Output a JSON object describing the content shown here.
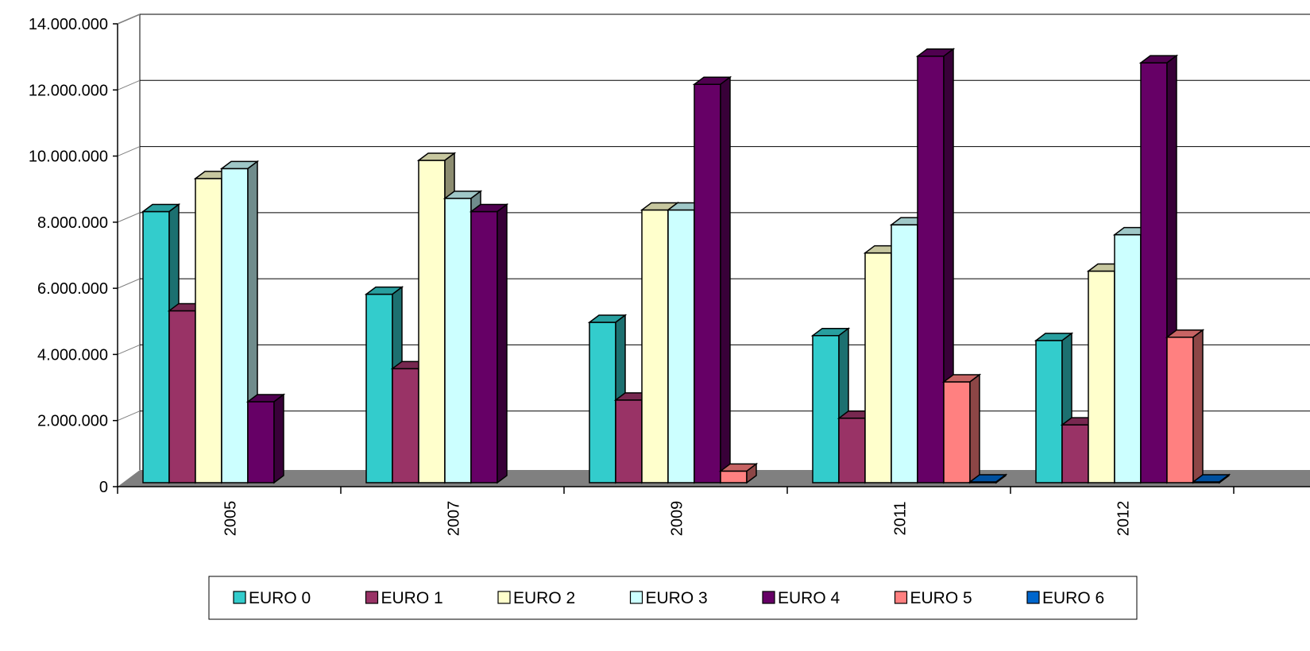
{
  "chart_data": {
    "type": "bar",
    "style": "3d-clustered-column",
    "categories": [
      "2005",
      "2007",
      "2009",
      "2011",
      "2012"
    ],
    "ylim": [
      0,
      14000000
    ],
    "yticks": [
      {
        "value": 0,
        "label": "0"
      },
      {
        "value": 2000000,
        "label": "2.000.000"
      },
      {
        "value": 4000000,
        "label": "4.000.000"
      },
      {
        "value": 6000000,
        "label": "6.000.000"
      },
      {
        "value": 8000000,
        "label": "8.000.000"
      },
      {
        "value": 10000000,
        "label": "10.000.000"
      },
      {
        "value": 12000000,
        "label": "12.000.000"
      },
      {
        "value": 14000000,
        "label": "14.000.000"
      }
    ],
    "grid": true,
    "legend_position": "bottom",
    "xlabel": "",
    "ylabel": "",
    "title": "",
    "series": [
      {
        "name": "EURO 0",
        "color": "#33CCCC",
        "values": [
          8200000,
          5700000,
          4850000,
          4450000,
          4300000
        ]
      },
      {
        "name": "EURO 1",
        "color": "#993366",
        "values": [
          5200000,
          3450000,
          2500000,
          1950000,
          1750000
        ]
      },
      {
        "name": "EURO 2",
        "color": "#FFFFCC",
        "values": [
          9200000,
          9750000,
          8250000,
          6950000,
          6400000
        ]
      },
      {
        "name": "EURO 3",
        "color": "#CCFFFF",
        "values": [
          9500000,
          8600000,
          8250000,
          7800000,
          7500000
        ]
      },
      {
        "name": "EURO 4",
        "color": "#660066",
        "values": [
          2450000,
          8200000,
          12050000,
          12900000,
          12700000
        ]
      },
      {
        "name": "EURO 5",
        "color": "#FF8080",
        "values": [
          0,
          0,
          350000,
          3050000,
          4400000
        ]
      },
      {
        "name": "EURO 6",
        "color": "#0066CC",
        "values": [
          0,
          0,
          0,
          20000,
          20000
        ]
      }
    ]
  }
}
